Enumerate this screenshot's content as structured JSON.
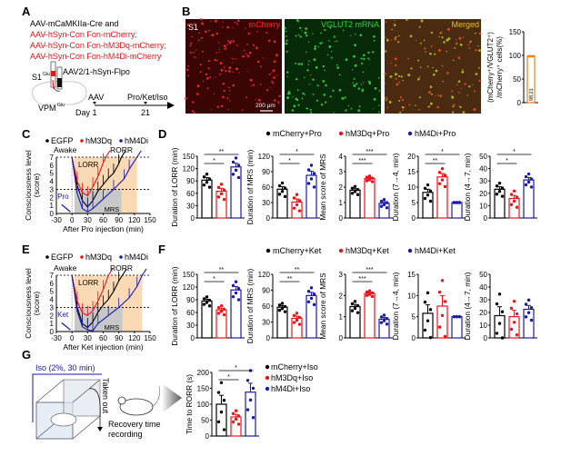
{
  "panel_labels": {
    "a": "A",
    "b": "B",
    "c": "C",
    "d": "D",
    "e": "E",
    "f": "F",
    "g": "G"
  },
  "panelA": {
    "line1": "AAV-mCaMKIIa-Cre and",
    "line2": "AAV-hSyn-Con Fon-mCherry;",
    "line3": "AAV-hSyn-Con Fon-hM3Dq-mCherry;",
    "line4": "AAV-hSyn-Con Fon-hM4Di-mCherry",
    "virus2": "AAV2/1-hSyn-Flpo",
    "s1": "S1",
    "s1_sup": "Glu",
    "vpm": "VPM",
    "vpm_sup": "Glu",
    "aav": "AAV",
    "drugs": "Pro/Ket/Iso",
    "day1": "Day 1",
    "day21": "21"
  },
  "panelB": {
    "region": "S1",
    "img1": "mCherry",
    "img2": "VGLUT2 mRNA",
    "img3": "Merged",
    "scale": "200 μm",
    "colors": {
      "mcherry": "#e01010",
      "vglut2": "#20b030",
      "merged": "#d07020"
    }
  },
  "legendPro": [
    "mCherry+Pro",
    "hM3Dq+Pro",
    "hM4Di+Pro"
  ],
  "legendKet": [
    "mCherry+Ket",
    "hM3Dq+Ket",
    "hM4Di+Ket"
  ],
  "legendIso": [
    "mCherry+Iso",
    "hM3Dq+Iso",
    "hM4Di+Iso"
  ],
  "lineLegend": [
    "EGFP",
    "hM3Dq",
    "hM4Di"
  ],
  "panelG": {
    "iso": "Iso (2%, 30 min)",
    "taken": "Taken out",
    "recovery": "Recovery time",
    "recording": "recording"
  },
  "colors": {
    "black": "#000000",
    "red": "#e8141b",
    "blue": "#1a1aa8",
    "lorr_shade": "#fad9b5",
    "mrs_shade": "#c8c8c8"
  },
  "chart_data": [
    {
      "id": "B",
      "type": "bar",
      "ylabel1": "(mCherry⁺/VGLUT2⁺)",
      "ylabel2": "/mCherry⁺ cells(%)",
      "ylim": [
        0,
        150
      ],
      "yticks": [
        0,
        50,
        100,
        150
      ],
      "values": [
        98.21
      ],
      "value_label": "98.21"
    },
    {
      "id": "C",
      "type": "line",
      "xlabel": "After Pro injection (min)",
      "ylabel1": "Consciousness level",
      "ylabel2": "(score)",
      "xlim": [
        -30,
        150
      ],
      "xticks": [
        -30,
        0,
        30,
        60,
        90,
        120,
        150
      ],
      "ylim": [
        0,
        7
      ],
      "yticks": [
        0,
        1,
        2,
        3,
        4,
        5,
        6,
        7
      ],
      "annotations": {
        "awake": "Awake",
        "lorr": "LORR",
        "rorr": "RORR",
        "mrs": "MRS",
        "drug": "Pro"
      },
      "series": [
        {
          "name": "EGFP",
          "x": [
            0,
            10,
            20,
            30,
            40,
            50,
            60,
            70,
            80,
            90,
            95
          ],
          "y": [
            7,
            3.5,
            1.6,
            0.8,
            1.6,
            2.8,
            3.6,
            4.4,
            5,
            6.2,
            7
          ]
        },
        {
          "name": "hM3Dq",
          "x": [
            0,
            10,
            20,
            30,
            40,
            50,
            60,
            65
          ],
          "y": [
            7,
            4,
            2.6,
            2.2,
            3.3,
            4.6,
            6.3,
            7
          ]
        },
        {
          "name": "hM4Di",
          "x": [
            0,
            10,
            20,
            30,
            40,
            60,
            80,
            100,
            110,
            125
          ],
          "y": [
            7,
            2.5,
            0.6,
            0.2,
            0.6,
            1.8,
            3,
            4.3,
            5.5,
            7
          ]
        }
      ]
    },
    {
      "id": "D1",
      "type": "bar",
      "ylabel": "Duration of LORR (min)",
      "ylim": [
        0,
        150
      ],
      "yticks": [
        0,
        30,
        60,
        90,
        120,
        150
      ],
      "values": [
        92,
        65,
        124
      ],
      "sem": [
        6,
        7,
        9
      ],
      "sig": [
        [
          0,
          1,
          "*"
        ],
        [
          0,
          2,
          "**"
        ]
      ]
    },
    {
      "id": "D2",
      "type": "bar",
      "ylabel": "Duration of MRS (min)",
      "ylim": [
        0,
        120
      ],
      "yticks": [
        0,
        30,
        60,
        90,
        120
      ],
      "values": [
        56,
        31,
        83
      ],
      "sem": [
        5,
        6,
        8
      ],
      "sig": [
        [
          0,
          1,
          "*"
        ],
        [
          0,
          2,
          "*"
        ]
      ]
    },
    {
      "id": "D3",
      "type": "bar",
      "ylabel": "Mean score of MRS",
      "ylim": [
        0,
        4
      ],
      "yticks": [
        0,
        1,
        2,
        3,
        4
      ],
      "values": [
        1.8,
        2.55,
        0.95
      ],
      "sem": [
        0.1,
        0.07,
        0.1
      ],
      "sig": [
        [
          0,
          1,
          "***"
        ],
        [
          0,
          2,
          "***"
        ]
      ]
    },
    {
      "id": "D4",
      "type": "bar",
      "ylabel": "Duration (7→4, min)",
      "ylim": [
        0,
        20
      ],
      "yticks": [
        0,
        5,
        10,
        15,
        20
      ],
      "values": [
        8.3,
        13.3,
        5
      ],
      "sem": [
        1,
        1.1,
        0
      ],
      "sig": [
        [
          0,
          1,
          "**"
        ],
        [
          0,
          2,
          "*"
        ]
      ]
    },
    {
      "id": "D5",
      "type": "bar",
      "ylabel": "Duration (4→7, min)",
      "ylim": [
        0,
        50
      ],
      "yticks": [
        0,
        10,
        20,
        30,
        40,
        50
      ],
      "values": [
        23.3,
        15.8,
        30.8
      ],
      "sem": [
        2,
        2.5,
        2
      ],
      "sig": [
        [
          0,
          1,
          "*"
        ],
        [
          0,
          2,
          "*"
        ]
      ]
    },
    {
      "id": "E",
      "type": "line",
      "xlabel": "After Ket injection (min)",
      "ylabel1": "Consciousness level",
      "ylabel2": "(score)",
      "xlim": [
        -30,
        150
      ],
      "xticks": [
        -30,
        0,
        30,
        60,
        90,
        120,
        150
      ],
      "ylim": [
        0,
        7
      ],
      "yticks": [
        0,
        1,
        2,
        3,
        4,
        5,
        6,
        7
      ],
      "annotations": {
        "awake": "Awake",
        "lorr": "LORR",
        "rorr": "RORR",
        "mrs": "MRS",
        "drug": "Ket"
      },
      "series": [
        {
          "name": "EGFP",
          "x": [
            0,
            10,
            20,
            30,
            40,
            50,
            60,
            70,
            80,
            90,
            97
          ],
          "y": [
            7,
            3,
            1,
            0.5,
            1.2,
            2.4,
            3.3,
            4,
            5,
            6.3,
            7
          ]
        },
        {
          "name": "hM3Dq",
          "x": [
            0,
            10,
            20,
            30,
            40,
            50,
            60,
            70
          ],
          "y": [
            7,
            3.8,
            2.3,
            2,
            2.6,
            3.8,
            5.2,
            7
          ]
        },
        {
          "name": "hM4Di",
          "x": [
            0,
            10,
            20,
            30,
            40,
            50,
            70,
            90,
            110,
            125,
            135
          ],
          "y": [
            7,
            2.5,
            0.6,
            0.2,
            0.1,
            1,
            2,
            3,
            4.2,
            5.6,
            7
          ]
        }
      ]
    },
    {
      "id": "F1",
      "type": "bar",
      "ylabel": "Duration of LORR (min)",
      "ylim": [
        0,
        150
      ],
      "yticks": [
        0,
        30,
        60,
        90,
        120,
        150
      ],
      "values": [
        87,
        66,
        113
      ],
      "sem": [
        4,
        4,
        8
      ],
      "sig": [
        [
          0,
          1,
          "*"
        ],
        [
          0,
          2,
          "**"
        ]
      ]
    },
    {
      "id": "F2",
      "type": "bar",
      "ylabel": "Duration of MRS (min)",
      "ylim": [
        0,
        120
      ],
      "yticks": [
        0,
        30,
        60,
        90,
        120
      ],
      "values": [
        58,
        37,
        80
      ],
      "sem": [
        3,
        4,
        6
      ],
      "sig": [
        [
          0,
          1,
          "**"
        ],
        [
          0,
          2,
          "**"
        ]
      ]
    },
    {
      "id": "F3",
      "type": "bar",
      "ylabel": "Mean score of MRS",
      "ylim": [
        0,
        3
      ],
      "yticks": [
        0,
        1,
        2,
        3
      ],
      "values": [
        1.48,
        2.1,
        0.88
      ],
      "sem": [
        0.1,
        0.05,
        0.08
      ],
      "sig": [
        [
          0,
          1,
          "***"
        ],
        [
          0,
          2,
          "***"
        ]
      ]
    },
    {
      "id": "F4",
      "type": "bar",
      "ylabel": "Duration (7→4, min)",
      "ylim": [
        0,
        15
      ],
      "yticks": [
        0,
        5,
        10,
        15
      ],
      "values": [
        5.8,
        7.5,
        5
      ],
      "sem": [
        2,
        2.5,
        0
      ],
      "sig": []
    },
    {
      "id": "F5",
      "type": "bar",
      "ylabel": "Duration (4→7, min)",
      "ylim": [
        0,
        50
      ],
      "yticks": [
        0,
        10,
        20,
        30,
        40,
        50
      ],
      "values": [
        17.5,
        16.7,
        22.5
      ],
      "sem": [
        7,
        5,
        3
      ],
      "sig": []
    },
    {
      "id": "G",
      "type": "bar",
      "ylabel": "Time to RORR (s)",
      "ylim": [
        0,
        200
      ],
      "yticks": [
        0,
        50,
        100,
        150,
        200
      ],
      "values": [
        100,
        60,
        138
      ],
      "sem": [
        28,
        8,
        28
      ],
      "sig": [
        [
          0,
          1,
          "*"
        ],
        [
          0,
          2,
          "*"
        ]
      ]
    }
  ]
}
